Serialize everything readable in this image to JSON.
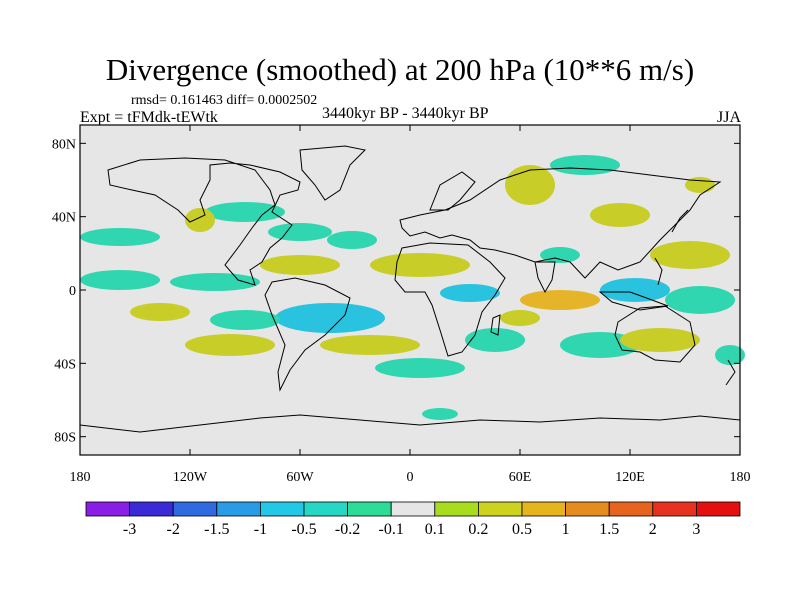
{
  "title": "Divergence (smoothed) at 200 hPa (10**6 m/s)",
  "stats": "rmsd= 0.161463 diff= 0.0002502",
  "experiment": "Expt = tFMdk-tEWtk",
  "period": "3440kyr BP - 3440kyr BP",
  "season": "JJA",
  "map": {
    "lat_ticks": [
      {
        "label": "80N",
        "lat": 80
      },
      {
        "label": "40N",
        "lat": 40
      },
      {
        "label": "0",
        "lat": 0
      },
      {
        "label": "40S",
        "lat": -40
      },
      {
        "label": "80S",
        "lat": -80
      }
    ],
    "lon_ticks": [
      {
        "label": "180",
        "lon": -180
      },
      {
        "label": "120W",
        "lon": -120
      },
      {
        "label": "60W",
        "lon": -60
      },
      {
        "label": "0",
        "lon": 0
      },
      {
        "label": "60E",
        "lon": 60
      },
      {
        "label": "120E",
        "lon": 120
      },
      {
        "label": "180",
        "lon": 180
      }
    ],
    "lat_range": [
      -90,
      90
    ],
    "lon_range": [
      -180,
      180
    ]
  },
  "colorbar": {
    "labels": [
      "-3",
      "-2",
      "-1.5",
      "-1",
      "-0.5",
      "-0.2",
      "-0.1",
      "0.1",
      "0.2",
      "0.5",
      "1",
      "1.5",
      "2",
      "3"
    ],
    "colors": [
      "#8a1ee6",
      "#3a2bd6",
      "#2f6ae0",
      "#2a9be6",
      "#22c8e6",
      "#25d7c4",
      "#2ddc96",
      "#e6e6e6",
      "#a8dc1e",
      "#cdd21e",
      "#e6b41e",
      "#e68c1e",
      "#e6641e",
      "#e6321e",
      "#e60f0f"
    ]
  },
  "fields": {
    "positive_color": "#c8cd28",
    "positive_strong_color": "#e6b428",
    "negative_color": "#30d6b0",
    "negative_strong_color": "#2ac3df",
    "ocean_bg": "#e6e6e6"
  }
}
